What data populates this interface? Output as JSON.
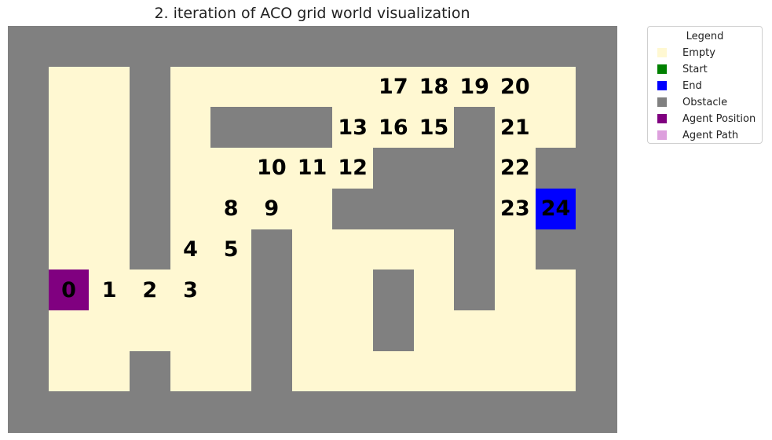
{
  "title": "2. iteration of ACO grid world visualization",
  "colors": {
    "empty": "#fff8d2",
    "start": "#008000",
    "end": "#0000ff",
    "obstacle": "#808080",
    "agent_position": "#800080",
    "agent_path": "#dda0dd"
  },
  "grid": {
    "rows": 10,
    "cols": 15,
    "cells": [
      "OOOOOOOOOOOOOOO",
      "OEEOEEEEEEEEEEO",
      "OEEOEOOOEEEOEEO",
      "OEEOEEEEEOOOEOO",
      "OEEOEEEEOOOOEEO",
      "OEEOEEOEEEEOEOO",
      "OPEEEEOEEOEOEEO",
      "OEEEEEOEEOEEEEO",
      "OEEOEEOEEEEEEEO",
      "OOOOOOOOOOOOOOO"
    ],
    "end_cell": [
      4,
      13
    ],
    "agent_cell": [
      6,
      1
    ],
    "steps": [
      {
        "label": "0",
        "row": 6,
        "col": 1
      },
      {
        "label": "1",
        "row": 6,
        "col": 2
      },
      {
        "label": "2",
        "row": 6,
        "col": 3
      },
      {
        "label": "3",
        "row": 6,
        "col": 4
      },
      {
        "label": "4",
        "row": 5,
        "col": 4
      },
      {
        "label": "5",
        "row": 5,
        "col": 5
      },
      {
        "label": "8",
        "row": 4,
        "col": 5
      },
      {
        "label": "9",
        "row": 4,
        "col": 6
      },
      {
        "label": "10",
        "row": 3,
        "col": 6
      },
      {
        "label": "11",
        "row": 3,
        "col": 7
      },
      {
        "label": "12",
        "row": 3,
        "col": 8
      },
      {
        "label": "13",
        "row": 2,
        "col": 8
      },
      {
        "label": "16",
        "row": 2,
        "col": 9
      },
      {
        "label": "15",
        "row": 2,
        "col": 10
      },
      {
        "label": "17",
        "row": 1,
        "col": 9
      },
      {
        "label": "18",
        "row": 1,
        "col": 10
      },
      {
        "label": "19",
        "row": 1,
        "col": 11
      },
      {
        "label": "20",
        "row": 1,
        "col": 12
      },
      {
        "label": "21",
        "row": 2,
        "col": 12
      },
      {
        "label": "22",
        "row": 3,
        "col": 12
      },
      {
        "label": "23",
        "row": 4,
        "col": 12
      },
      {
        "label": "24",
        "row": 4,
        "col": 13
      }
    ]
  },
  "legend": {
    "title": "Legend",
    "items": [
      {
        "label": "Empty",
        "color": "#fff8d2"
      },
      {
        "label": "Start",
        "color": "#008000"
      },
      {
        "label": "End",
        "color": "#0000ff"
      },
      {
        "label": "Obstacle",
        "color": "#808080"
      },
      {
        "label": "Agent Position",
        "color": "#800080"
      },
      {
        "label": "Agent Path",
        "color": "#dda0dd"
      }
    ]
  }
}
